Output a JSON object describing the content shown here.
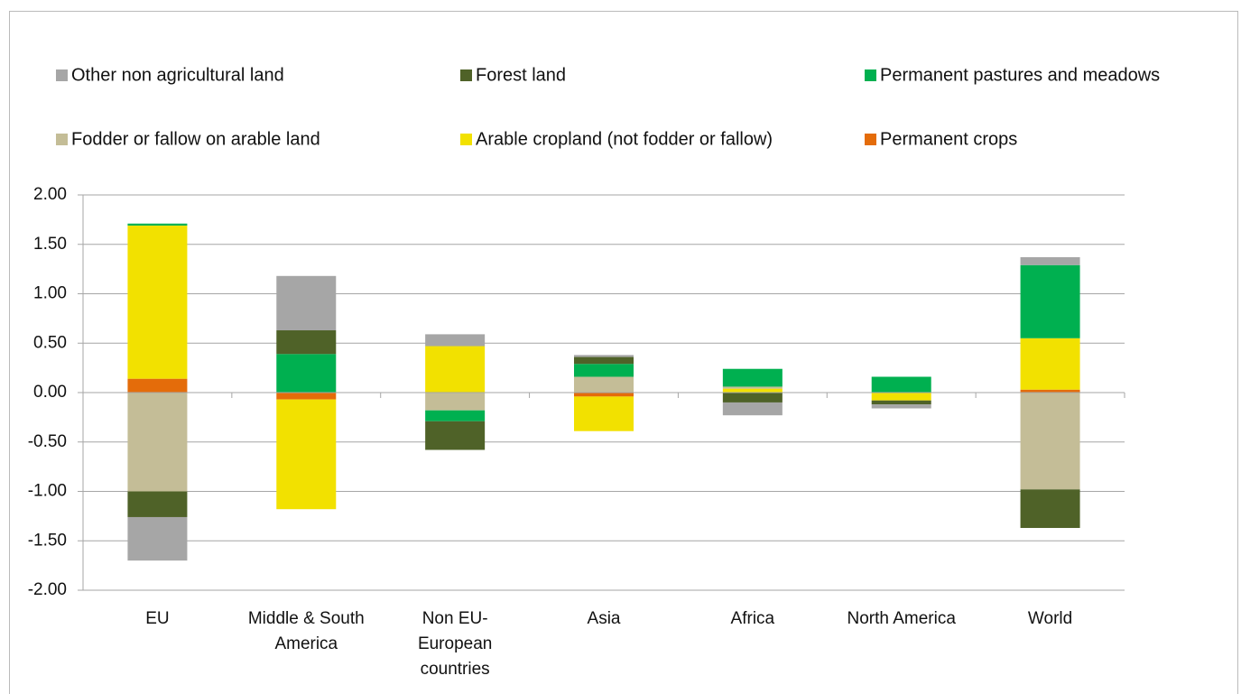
{
  "chart_data": {
    "type": "stacked_bar",
    "categories": [
      "EU",
      "Middle & South America",
      "Non EU-European countries",
      "Asia",
      "Africa",
      "North America",
      "World"
    ],
    "series": [
      {
        "name": "Permanent crops",
        "color": "#e46c0a",
        "values": [
          0.14,
          -0.07,
          0,
          -0.04,
          0,
          0,
          0.03
        ]
      },
      {
        "name": "Arable cropland (not fodder or fallow)",
        "color": "#f2e100",
        "values": [
          1.55,
          -1.11,
          0.47,
          -0.35,
          0.04,
          -0.08,
          0.52
        ]
      },
      {
        "name": "Fodder or fallow on arable land",
        "color": "#c4bd97",
        "values": [
          -1.0,
          0,
          -0.18,
          0.16,
          0.02,
          0,
          -0.98
        ]
      },
      {
        "name": "Permanent pastures and meadows",
        "color": "#00b050",
        "values": [
          0.02,
          0.39,
          -0.11,
          0.13,
          0.18,
          0.16,
          0.74
        ]
      },
      {
        "name": "Forest land",
        "color": "#4f6228",
        "values": [
          -0.26,
          0.24,
          -0.29,
          0.07,
          -0.1,
          -0.04,
          -0.39
        ]
      },
      {
        "name": "Other non agricultural land",
        "color": "#a6a6a6",
        "values": [
          -0.44,
          0.55,
          0.12,
          0.02,
          -0.13,
          -0.04,
          0.08
        ]
      }
    ],
    "ylim": [
      -2,
      2
    ],
    "yticks": [
      {
        "value": -2,
        "label": "-2.00"
      },
      {
        "value": -1.5,
        "label": "-1.50"
      },
      {
        "value": -1,
        "label": "-1.00"
      },
      {
        "value": -0.5,
        "label": "-0.50"
      },
      {
        "value": 0,
        "label": "0.00"
      },
      {
        "value": 0.5,
        "label": "0.50"
      },
      {
        "value": 1,
        "label": "1.00"
      },
      {
        "value": 1.5,
        "label": "1.50"
      },
      {
        "value": 2,
        "label": "2.00"
      }
    ],
    "grid": true
  }
}
